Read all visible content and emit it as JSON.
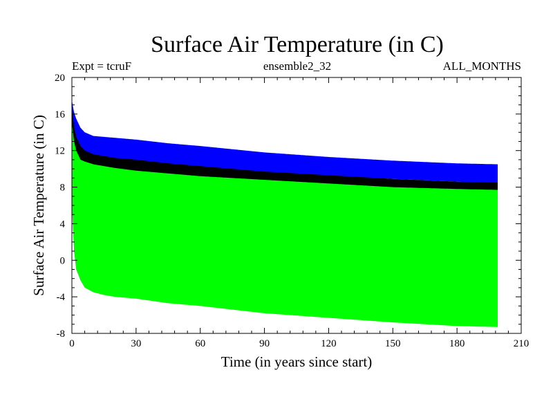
{
  "chart_data": {
    "type": "line",
    "title": "Surface Air Temperature (in C)",
    "subtitle_left": "Expt = tcruF",
    "subtitle_center": "ensemble2_32",
    "subtitle_right": "ALL_MONTHS",
    "xlabel": "Time (in years since start)",
    "ylabel": "Surface Air Temperature (in C)",
    "xlim": [
      0,
      210
    ],
    "ylim": [
      -8,
      20
    ],
    "x_ticks": [
      0,
      30,
      60,
      90,
      120,
      150,
      180,
      210
    ],
    "y_ticks": [
      -8,
      -4,
      0,
      4,
      8,
      12,
      16,
      20
    ],
    "legend": "none",
    "series": [
      {
        "color": "#0000ff",
        "x": [
          0,
          1,
          2,
          4,
          6,
          10,
          15,
          20,
          30,
          45,
          60,
          90,
          120,
          150,
          180,
          199
        ],
        "max": [
          17.5,
          16.2,
          15.5,
          14.5,
          14.0,
          13.6,
          13.5,
          13.4,
          13.2,
          12.8,
          12.5,
          11.8,
          11.3,
          10.9,
          10.6,
          10.5
        ],
        "min": [
          13.5,
          12.8,
          12.3,
          11.8,
          11.5,
          11.3,
          11.2,
          11.0,
          10.8,
          10.5,
          10.2,
          9.6,
          9.2,
          8.9,
          8.6,
          8.4
        ]
      },
      {
        "color": "#000000",
        "x": [
          0,
          1,
          2,
          4,
          6,
          10,
          15,
          20,
          30,
          45,
          60,
          90,
          120,
          150,
          180,
          199
        ],
        "max": [
          16.5,
          14.5,
          13.5,
          12.5,
          12.0,
          11.6,
          11.4,
          11.2,
          11.0,
          10.6,
          10.3,
          9.7,
          9.3,
          8.9,
          8.6,
          8.5
        ],
        "min": [
          7.5,
          7.0,
          7.0,
          7.0,
          6.8,
          6.8,
          6.6,
          6.5,
          6.4,
          6.2,
          6.0,
          5.8,
          5.6,
          5.4,
          5.2,
          5.0
        ]
      },
      {
        "color": "#00ff00",
        "x": [
          0,
          1,
          2,
          4,
          6,
          10,
          15,
          20,
          30,
          45,
          60,
          90,
          120,
          150,
          180,
          199
        ],
        "max": [
          15.0,
          13.0,
          12.0,
          11.0,
          10.8,
          10.5,
          10.3,
          10.1,
          9.8,
          9.5,
          9.2,
          8.8,
          8.4,
          8.0,
          7.8,
          7.7
        ],
        "min": [
          6.0,
          1.0,
          -1.0,
          -2.2,
          -3.0,
          -3.5,
          -3.8,
          -4.0,
          -4.2,
          -4.7,
          -5.0,
          -5.8,
          -6.3,
          -6.8,
          -7.2,
          -7.3
        ]
      }
    ]
  }
}
